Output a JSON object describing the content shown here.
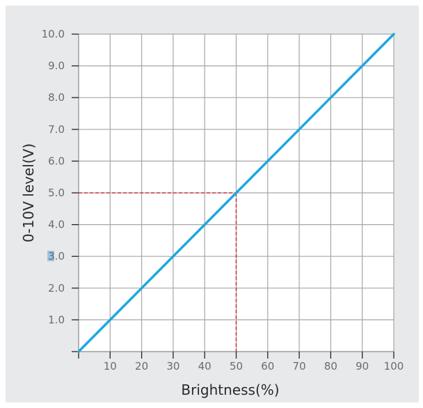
{
  "chart_data": {
    "type": "line",
    "title": "",
    "xlabel": "Brightness(%)",
    "ylabel": "0-10V level(V)",
    "xlim": [
      0,
      100
    ],
    "ylim": [
      0,
      10
    ],
    "grid": true,
    "x_ticks": [
      10,
      20,
      30,
      40,
      50,
      60,
      70,
      80,
      90,
      100
    ],
    "x_tick_labels": [
      "10",
      "20",
      "30",
      "40",
      "50",
      "60",
      "70",
      "80",
      "90",
      "100"
    ],
    "y_ticks": [
      1,
      2,
      3,
      4,
      5,
      6,
      7,
      8,
      9,
      10
    ],
    "y_tick_labels": [
      "1.0",
      "2.0",
      "3.0",
      "4.0",
      "5.0",
      "6.0",
      "7.0",
      "8.0",
      "9.0",
      "10.0"
    ],
    "series": [
      {
        "name": "0-10V level",
        "color": "#1ea7de",
        "x": [
          0,
          10,
          20,
          30,
          40,
          50,
          60,
          70,
          80,
          90,
          100
        ],
        "y": [
          0,
          1,
          2,
          3,
          4,
          5,
          6,
          7,
          8,
          9,
          10
        ]
      }
    ],
    "annotations": [
      {
        "type": "dashed-guide",
        "color": "#d2364a",
        "point": [
          50,
          5.0
        ],
        "description": "Dashed lines marking 50% brightness corresponds to 5.0 V"
      }
    ],
    "highlighted_tick": {
      "axis": "y",
      "label": "3.0",
      "highlight_color": "#9dc3e6"
    }
  },
  "colors": {
    "panel_background": "#e8e9ea",
    "plot_background": "#ffffff",
    "grid": "#a6a6a6",
    "line": "#1ea7de",
    "guide": "#d2364a"
  }
}
